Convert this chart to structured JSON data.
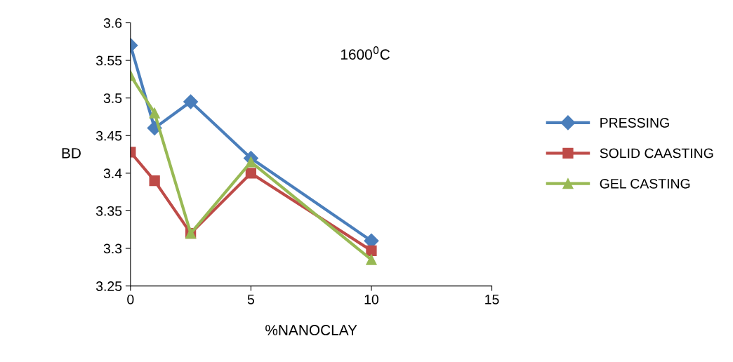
{
  "chart_data": {
    "type": "line",
    "xlabel": "%NANOCLAY",
    "ylabel": "BD",
    "annotations": [
      "1600$^{0}$C"
    ],
    "xlim": [
      0,
      15
    ],
    "xticks": [
      0,
      5,
      10,
      15
    ],
    "ylim": [
      3.25,
      3.6
    ],
    "yticks": [
      3.25,
      3.3,
      3.35,
      3.4,
      3.45,
      3.5,
      3.55,
      3.6
    ],
    "grid": false,
    "legend": "right",
    "line_style": "solid",
    "series": [
      {
        "name": "PRESSING",
        "color": "#4a7ebb",
        "marker": "diamond",
        "x": [
          0,
          1,
          2.5,
          5,
          10
        ],
        "values": [
          3.57,
          3.46,
          3.495,
          3.42,
          3.31
        ]
      },
      {
        "name": "SOLID CAASTING",
        "color": "#be4b48",
        "marker": "square",
        "x": [
          0,
          1,
          2.5,
          5,
          10
        ],
        "values": [
          3.428,
          3.39,
          3.32,
          3.4,
          3.297
        ]
      },
      {
        "name": "GEL CASTING",
        "color": "#98b954",
        "marker": "triangle",
        "x": [
          0,
          1,
          2.5,
          5,
          10
        ],
        "values": [
          3.53,
          3.48,
          3.32,
          3.415,
          3.285
        ]
      }
    ]
  }
}
